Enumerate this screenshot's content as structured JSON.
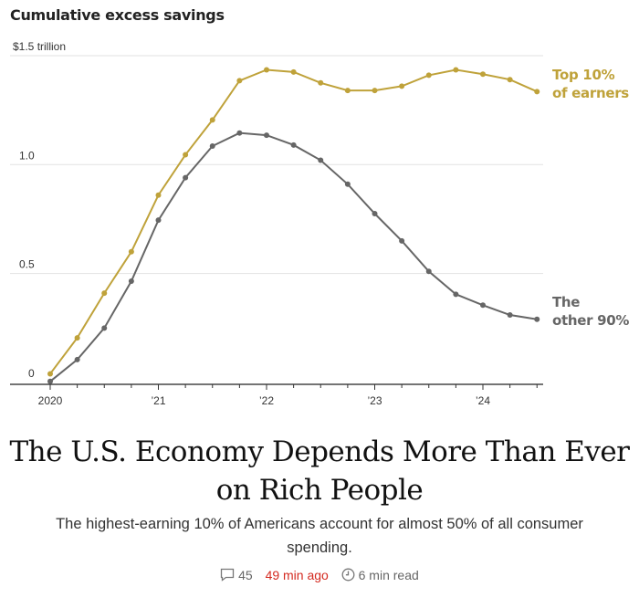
{
  "chart_data": {
    "type": "line",
    "title": "Cumulative excess savings",
    "ylabel": "",
    "xlabel": "",
    "y_unit_label": "$1.5 trillion",
    "ylim": [
      0,
      1.5
    ],
    "yticks": [
      {
        "value": 0,
        "label": "0"
      },
      {
        "value": 0.5,
        "label": "0.5"
      },
      {
        "value": 1.0,
        "label": "1.0"
      },
      {
        "value": 1.5,
        "label": "$1.5 trillion"
      }
    ],
    "xticks": [
      {
        "value": 2020,
        "label": "2020"
      },
      {
        "value": 2021,
        "label": "’21"
      },
      {
        "value": 2022,
        "label": "’22"
      },
      {
        "value": 2023,
        "label": "’23"
      },
      {
        "value": 2024,
        "label": "’24"
      }
    ],
    "xlim": [
      2019.7,
      2024.65
    ],
    "grid": true,
    "x": [
      2020.0,
      2020.25,
      2020.5,
      2020.75,
      2021.0,
      2021.25,
      2021.5,
      2021.75,
      2022.0,
      2022.25,
      2022.5,
      2022.75,
      2023.0,
      2023.25,
      2023.5,
      2023.75,
      2024.0,
      2024.25,
      2024.5
    ],
    "series": [
      {
        "name": "Top 10% of earners",
        "color": "#bfa23a",
        "values": [
          0.04,
          0.205,
          0.41,
          0.6,
          0.86,
          1.045,
          1.205,
          1.385,
          1.435,
          1.425,
          1.375,
          1.34,
          1.34,
          1.36,
          1.41,
          1.435,
          1.415,
          1.39,
          1.335
        ]
      },
      {
        "name": "The other 90%",
        "color": "#666666",
        "values": [
          0.005,
          0.105,
          0.25,
          0.465,
          0.745,
          0.94,
          1.085,
          1.145,
          1.135,
          1.09,
          1.02,
          0.91,
          0.775,
          0.65,
          0.51,
          0.405,
          0.355,
          0.31,
          0.29
        ]
      }
    ]
  },
  "labels": {
    "top_line1": "Top 10%",
    "top_line2": "of earners",
    "other_line1": "The",
    "other_line2": "other 90%"
  },
  "article": {
    "headline": "The U.S. Economy Depends More Than Ever on Rich People",
    "subhead": "The highest-earning 10% of Americans account for almost 50% of all consumer spending.",
    "comments": "45",
    "time_ago": "49 min ago",
    "read_time": "6 min read"
  }
}
